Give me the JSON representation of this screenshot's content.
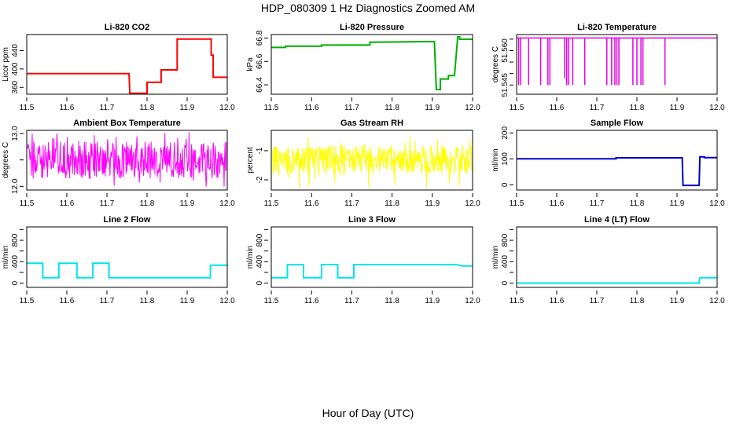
{
  "page": {
    "title": "HDP_080309  1 Hz Diagnostics Zoomed AM",
    "xlabel": "Hour of Day (UTC)"
  },
  "chart_data": [
    {
      "type": "line",
      "title": "Li-820 CO2",
      "ylabel": "Licor ppm",
      "xlabel": "",
      "xlim": [
        11.5,
        12.0
      ],
      "ylim": [
        345,
        475
      ],
      "xticks": [
        "11.5",
        "11.6",
        "11.7",
        "11.8",
        "11.9",
        "12.0"
      ],
      "yticks": [
        360,
        400,
        440
      ],
      "ytick_labels": [
        "360",
        "400",
        "440"
      ],
      "color": "#ff0000",
      "lineStyle": "step",
      "series": [
        {
          "x": [
            11.5,
            11.755,
            11.757,
            11.8,
            11.8,
            11.835,
            11.835,
            11.875,
            11.875,
            11.96,
            11.96,
            11.965,
            11.965,
            12.0
          ],
          "y": [
            390,
            390,
            347,
            347,
            371,
            371,
            398,
            398,
            465,
            465,
            430,
            430,
            382,
            382
          ]
        }
      ]
    },
    {
      "type": "line",
      "title": "Li-820 Pressure",
      "ylabel": "kPa",
      "xlabel": "",
      "xlim": [
        11.5,
        12.0
      ],
      "ylim": [
        66.32,
        66.83
      ],
      "xticks": [
        "11.5",
        "11.6",
        "11.7",
        "11.8",
        "11.9",
        "12.0"
      ],
      "yticks": [
        66.4,
        66.6,
        66.8
      ],
      "ytick_labels": [
        "66.4",
        "66.6",
        "66.8"
      ],
      "color": "#00b000",
      "lineStyle": "step",
      "series": [
        {
          "x": [
            11.5,
            11.535,
            11.535,
            11.625,
            11.625,
            11.745,
            11.745,
            11.905,
            11.91,
            11.92,
            11.92,
            11.94,
            11.94,
            11.955,
            11.963,
            11.968,
            11.968,
            12.0
          ],
          "y": [
            66.72,
            66.72,
            66.73,
            66.73,
            66.74,
            66.74,
            66.765,
            66.77,
            66.36,
            66.36,
            66.45,
            66.45,
            66.48,
            66.48,
            66.81,
            66.81,
            66.79,
            66.79
          ]
        }
      ]
    },
    {
      "type": "line",
      "title": "Li-820 Temperature",
      "ylabel": "degrees C",
      "xlabel": "",
      "xlim": [
        11.5,
        12.0
      ],
      "ylim": [
        51.541,
        51.567
      ],
      "xticks": [
        "11.5",
        "11.6",
        "11.7",
        "11.8",
        "11.9",
        "12.0"
      ],
      "yticks": [
        51.545,
        51.55,
        51.555,
        51.56,
        51.565
      ],
      "ytick_labels": [
        "51.545",
        "",
        "",
        "51.560",
        ""
      ],
      "color": "#e000e0",
      "lineStyle": "spikes",
      "baseline": 51.5655,
      "spikeTo": 51.5445,
      "series": [
        {
          "x": [
            11.505,
            11.51,
            11.53,
            11.56,
            11.578,
            11.583,
            11.62,
            11.625,
            11.63,
            11.64,
            11.67,
            11.725,
            11.737,
            11.745,
            11.75,
            11.755,
            11.79,
            11.8,
            11.81,
            11.815,
            11.87
          ],
          "y": [
            51.545,
            51.545,
            51.545,
            51.545,
            51.545,
            51.545,
            51.548,
            51.545,
            51.545,
            51.545,
            51.545,
            51.545,
            51.545,
            51.545,
            51.545,
            51.545,
            51.545,
            51.545,
            51.545,
            51.545,
            51.545
          ]
        }
      ]
    },
    {
      "type": "line",
      "title": "Ambient Box Temperature",
      "ylabel": "degrees C",
      "xlabel": "",
      "xlim": [
        11.5,
        12.0
      ],
      "ylim": [
        11.93,
        13.06
      ],
      "xticks": [
        "11.5",
        "11.6",
        "11.7",
        "11.8",
        "11.9",
        "12.0"
      ],
      "yticks": [
        12.0,
        12.5,
        13.0
      ],
      "ytick_labels": [
        "12.0",
        "",
        "13.0"
      ],
      "color": "#ff00ff",
      "lineStyle": "noise",
      "series": [
        {
          "x": [
            11.5,
            12.0
          ],
          "y": [
            12.5,
            12.5
          ],
          "noise_min": 11.98,
          "noise_max": 13.03,
          "typical_min": 12.15,
          "typical_max": 12.85
        }
      ]
    },
    {
      "type": "line",
      "title": "Gas Stream RH",
      "ylabel": "percent",
      "xlabel": "",
      "xlim": [
        11.5,
        12.0
      ],
      "ylim": [
        -2.35,
        -0.3
      ],
      "xticks": [
        "11.5",
        "11.6",
        "11.7",
        "11.8",
        "11.9",
        "12.0"
      ],
      "yticks": [
        -2.0,
        -1.0
      ],
      "ytick_labels": [
        "-2",
        "-1"
      ],
      "color": "#ffff00",
      "lineStyle": "noise",
      "series": [
        {
          "x": [
            11.5,
            12.0
          ],
          "y": [
            -1.3,
            -1.3
          ],
          "noise_min": -2.3,
          "noise_max": -0.5,
          "typical_min": -1.8,
          "typical_max": -0.8
        }
      ]
    },
    {
      "type": "line",
      "title": "Sample Flow",
      "ylabel": "ml/min",
      "xlabel": "",
      "xlim": [
        11.5,
        12.0
      ],
      "ylim": [
        -20,
        210
      ],
      "xticks": [
        "11.5",
        "11.6",
        "11.7",
        "11.8",
        "11.9",
        "12.0"
      ],
      "yticks": [
        0,
        100,
        200
      ],
      "ytick_labels": [
        "0",
        "100",
        "200"
      ],
      "color": "#0000cc",
      "lineStyle": "step",
      "series": [
        {
          "x": [
            11.5,
            11.748,
            11.748,
            11.913,
            11.915,
            11.955,
            11.957,
            11.968,
            11.968,
            12.0
          ],
          "y": [
            100,
            100,
            104,
            104,
            -2,
            -2,
            108,
            108,
            105,
            105
          ]
        }
      ]
    },
    {
      "type": "line",
      "title": "Line 2 Flow",
      "ylabel": "ml/min",
      "xlabel": "",
      "xlim": [
        11.5,
        12.0
      ],
      "ylim": [
        -80,
        1050
      ],
      "xticks": [
        "11.5",
        "11.6",
        "11.7",
        "11.8",
        "11.9",
        "12.0"
      ],
      "yticks": [
        0,
        200,
        400,
        600,
        800,
        1000
      ],
      "ytick_labels": [
        "0",
        "",
        "400",
        "",
        "800",
        ""
      ],
      "color": "#00e5ee",
      "lineStyle": "step",
      "series": [
        {
          "x": [
            11.5,
            11.54,
            11.54,
            11.58,
            11.58,
            11.625,
            11.625,
            11.665,
            11.665,
            11.705,
            11.705,
            11.958,
            11.958,
            12.0
          ],
          "y": [
            370,
            370,
            100,
            100,
            370,
            370,
            100,
            100,
            370,
            370,
            100,
            100,
            335,
            335
          ]
        }
      ]
    },
    {
      "type": "line",
      "title": "Line 3 Flow",
      "ylabel": "ml/min",
      "xlabel": "",
      "xlim": [
        11.5,
        12.0
      ],
      "ylim": [
        -80,
        1050
      ],
      "xticks": [
        "11.5",
        "11.6",
        "11.7",
        "11.8",
        "11.9",
        "12.0"
      ],
      "yticks": [
        0,
        200,
        400,
        600,
        800,
        1000
      ],
      "ytick_labels": [
        "0",
        "",
        "400",
        "",
        "800",
        ""
      ],
      "color": "#00e5ee",
      "lineStyle": "step",
      "series": [
        {
          "x": [
            11.5,
            11.54,
            11.54,
            11.58,
            11.58,
            11.625,
            11.625,
            11.665,
            11.665,
            11.705,
            11.705,
            11.96,
            11.975,
            12.0
          ],
          "y": [
            100,
            100,
            345,
            345,
            100,
            100,
            345,
            345,
            100,
            100,
            345,
            345,
            320,
            320
          ]
        }
      ]
    },
    {
      "type": "line",
      "title": "Line 4 (LT) Flow",
      "ylabel": "ml/min",
      "xlabel": "",
      "xlim": [
        11.5,
        12.0
      ],
      "ylim": [
        -80,
        1050
      ],
      "xticks": [
        "11.5",
        "11.6",
        "11.7",
        "11.8",
        "11.9",
        "12.0"
      ],
      "yticks": [
        0,
        200,
        400,
        600,
        800,
        1000
      ],
      "ytick_labels": [
        "0",
        "",
        "400",
        "",
        "800",
        ""
      ],
      "color": "#00e5ee",
      "lineStyle": "step",
      "series": [
        {
          "x": [
            11.5,
            11.955,
            11.957,
            12.0
          ],
          "y": [
            0,
            0,
            100,
            100
          ]
        }
      ]
    }
  ]
}
